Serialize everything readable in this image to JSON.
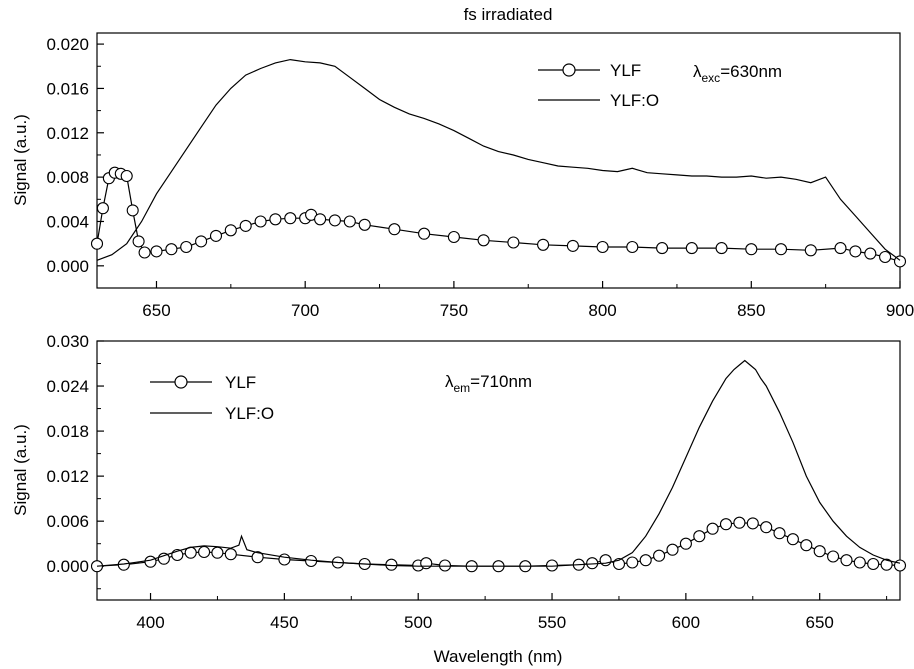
{
  "figure": {
    "title": "fs irradiated",
    "xlabel": "Wavelength (nm)"
  },
  "chart_data": [
    {
      "type": "line",
      "title": "fs irradiated",
      "xlabel": "",
      "ylabel": "Signal (a.u.)",
      "xlim": [
        630,
        900
      ],
      "ylim": [
        -0.002,
        0.021
      ],
      "xticks": [
        650,
        700,
        750,
        800,
        850,
        900
      ],
      "yticks": [
        0.0,
        0.004,
        0.008,
        0.012,
        0.016,
        0.02
      ],
      "xtick_labels": [
        "650",
        "700",
        "750",
        "800",
        "850",
        "900"
      ],
      "ytick_labels": [
        "0.000",
        "0.004",
        "0.008",
        "0.012",
        "0.016",
        "0.020"
      ],
      "grid": false,
      "legend_position": "top-right",
      "annotation": {
        "prefix": "λ",
        "sub": "exc",
        "suffix": "=630nm"
      },
      "series": [
        {
          "name": "YLF",
          "style": "line-with-open-circles",
          "x": [
            630,
            632,
            634,
            636,
            638,
            640,
            642,
            644,
            646,
            650,
            655,
            660,
            665,
            670,
            675,
            680,
            685,
            690,
            695,
            700,
            702,
            705,
            710,
            715,
            720,
            730,
            740,
            750,
            760,
            770,
            780,
            790,
            800,
            810,
            820,
            830,
            840,
            850,
            860,
            870,
            880,
            885,
            890,
            895,
            900
          ],
          "y": [
            0.002,
            0.0052,
            0.0079,
            0.0084,
            0.0083,
            0.0081,
            0.005,
            0.0022,
            0.0012,
            0.0013,
            0.0015,
            0.0017,
            0.0022,
            0.0027,
            0.0032,
            0.0036,
            0.004,
            0.0042,
            0.0043,
            0.0043,
            0.0046,
            0.0042,
            0.0041,
            0.004,
            0.0037,
            0.0033,
            0.0029,
            0.0026,
            0.0023,
            0.0021,
            0.0019,
            0.0018,
            0.0017,
            0.0017,
            0.0016,
            0.0016,
            0.0016,
            0.0015,
            0.0015,
            0.0014,
            0.0016,
            0.0013,
            0.0011,
            0.0008,
            0.0004
          ]
        },
        {
          "name": "YLF:O",
          "style": "line",
          "x": [
            630,
            635,
            640,
            645,
            650,
            655,
            660,
            665,
            670,
            675,
            680,
            685,
            690,
            695,
            700,
            705,
            710,
            715,
            720,
            725,
            730,
            735,
            740,
            745,
            750,
            755,
            760,
            765,
            770,
            775,
            780,
            785,
            790,
            795,
            800,
            805,
            810,
            815,
            820,
            825,
            830,
            835,
            840,
            845,
            850,
            855,
            860,
            865,
            870,
            875,
            880,
            885,
            890,
            895,
            900
          ],
          "y": [
            0.0005,
            0.001,
            0.002,
            0.004,
            0.0065,
            0.0085,
            0.0105,
            0.0125,
            0.0145,
            0.016,
            0.0172,
            0.0178,
            0.0183,
            0.0186,
            0.0184,
            0.0183,
            0.018,
            0.017,
            0.016,
            0.015,
            0.0143,
            0.0137,
            0.0133,
            0.0128,
            0.0122,
            0.0115,
            0.0108,
            0.0103,
            0.01,
            0.0096,
            0.0093,
            0.009,
            0.0089,
            0.0088,
            0.0086,
            0.0085,
            0.0088,
            0.0084,
            0.0083,
            0.0082,
            0.0081,
            0.0081,
            0.008,
            0.008,
            0.0081,
            0.0079,
            0.008,
            0.0078,
            0.0075,
            0.008,
            0.006,
            0.0045,
            0.003,
            0.0015,
            0.0005
          ]
        }
      ]
    },
    {
      "type": "line",
      "title": "",
      "xlabel": "Wavelength (nm)",
      "ylabel": "Signal (a.u.)",
      "xlim": [
        380,
        680
      ],
      "ylim": [
        -0.0045,
        0.03
      ],
      "xticks": [
        400,
        450,
        500,
        550,
        600,
        650
      ],
      "yticks": [
        0.0,
        0.006,
        0.012,
        0.018,
        0.024,
        0.03
      ],
      "xtick_labels": [
        "400",
        "450",
        "500",
        "550",
        "600",
        "650"
      ],
      "ytick_labels": [
        "0.000",
        "0.006",
        "0.012",
        "0.018",
        "0.024",
        "0.030"
      ],
      "grid": false,
      "legend_position": "top-left",
      "annotation": {
        "prefix": "λ",
        "sub": "em",
        "suffix": "=710nm"
      },
      "series": [
        {
          "name": "YLF",
          "style": "line-with-open-circles",
          "x": [
            380,
            390,
            400,
            405,
            410,
            415,
            420,
            425,
            430,
            440,
            450,
            460,
            470,
            480,
            490,
            500,
            503,
            510,
            520,
            530,
            540,
            550,
            560,
            565,
            570,
            575,
            580,
            585,
            590,
            595,
            600,
            605,
            610,
            615,
            620,
            625,
            630,
            635,
            640,
            645,
            650,
            655,
            660,
            665,
            670,
            675,
            680
          ],
          "y": [
            0.0,
            0.0002,
            0.0006,
            0.001,
            0.0015,
            0.0018,
            0.0019,
            0.0018,
            0.0016,
            0.0012,
            0.0009,
            0.0007,
            0.0005,
            0.0003,
            0.0002,
            0.0001,
            0.0004,
            0.0001,
            0.0,
            0.0,
            0.0,
            0.0001,
            0.0002,
            0.0004,
            0.0008,
            0.0003,
            0.0005,
            0.0008,
            0.0014,
            0.0022,
            0.003,
            0.004,
            0.005,
            0.0056,
            0.0058,
            0.0057,
            0.0052,
            0.0044,
            0.0036,
            0.0028,
            0.002,
            0.0013,
            0.0008,
            0.0005,
            0.0003,
            0.0002,
            0.0001
          ]
        },
        {
          "name": "YLF:O",
          "style": "line",
          "x": [
            380,
            390,
            400,
            405,
            410,
            415,
            420,
            425,
            430,
            433,
            434,
            436,
            440,
            450,
            460,
            470,
            480,
            490,
            500,
            510,
            520,
            530,
            540,
            550,
            560,
            570,
            575,
            580,
            585,
            590,
            595,
            600,
            605,
            610,
            615,
            618,
            620,
            622,
            624,
            626,
            628,
            630,
            635,
            640,
            645,
            650,
            655,
            660,
            665,
            670,
            675,
            680
          ],
          "y": [
            0.0,
            0.0003,
            0.0008,
            0.0014,
            0.002,
            0.0025,
            0.0027,
            0.0026,
            0.0024,
            0.0028,
            0.004,
            0.0022,
            0.0018,
            0.0012,
            0.0008,
            0.0005,
            0.0003,
            0.0001,
            0.0,
            0.0,
            0.0,
            0.0,
            0.0,
            0.0,
            0.0002,
            0.0004,
            0.0008,
            0.0018,
            0.004,
            0.007,
            0.0105,
            0.0145,
            0.0185,
            0.022,
            0.025,
            0.0262,
            0.0268,
            0.0274,
            0.0268,
            0.0262,
            0.025,
            0.024,
            0.0205,
            0.0165,
            0.012,
            0.0085,
            0.006,
            0.004,
            0.0025,
            0.0015,
            0.0008,
            0.0004
          ]
        }
      ]
    }
  ]
}
